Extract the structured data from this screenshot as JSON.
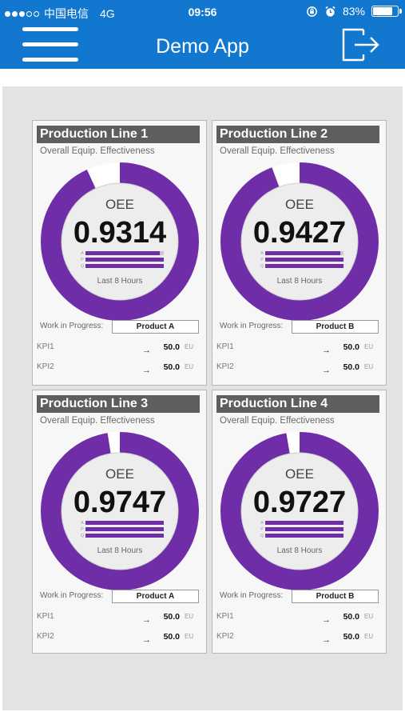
{
  "status_bar": {
    "carrier": "中国电信",
    "network": "4G",
    "time": "09:56",
    "battery_percent": "83%",
    "battery_level": 0.83,
    "signal_bars_filled": 3,
    "signal_bars_total": 5
  },
  "header": {
    "title": "Demo App",
    "menu_icon": "hamburger-menu-icon",
    "exit_icon": "logout-icon"
  },
  "colors": {
    "header_bg": "#1278cf",
    "gauge_purple": "#6f2da8",
    "card_title_bg": "#5e5e5e",
    "panel_bg": "#e3e3e3"
  },
  "cards": [
    {
      "title": "Production Line 1",
      "subtitle": "Overall Equip. Effectiveness",
      "metric_label": "OEE",
      "value": "0.9314",
      "oee": 0.9314,
      "bar_letters": [
        "A",
        "P",
        "Q"
      ],
      "bars": [
        0.95,
        1.0,
        1.0
      ],
      "period": "Last 8 Hours",
      "wip_label": "Work in Progress:",
      "wip_value": "Product A",
      "kpis": [
        {
          "label": "KPI1",
          "value": "50.0",
          "unit": "EU"
        },
        {
          "label": "KPI2",
          "value": "50.0",
          "unit": "EU"
        }
      ]
    },
    {
      "title": "Production Line 2",
      "subtitle": "Overall Equip. Effectiveness",
      "metric_label": "OEE",
      "value": "0.9427",
      "oee": 0.9427,
      "bar_letters": [
        "A",
        "P",
        "Q"
      ],
      "bars": [
        0.96,
        1.0,
        1.0
      ],
      "period": "Last 8 Hours",
      "wip_label": "Work in Progress:",
      "wip_value": "Product B",
      "kpis": [
        {
          "label": "KPI1",
          "value": "50.0",
          "unit": "EU"
        },
        {
          "label": "KPI2",
          "value": "50.0",
          "unit": "EU"
        }
      ]
    },
    {
      "title": "Production Line 3",
      "subtitle": "Overall Equip. Effectiveness",
      "metric_label": "OEE",
      "value": "0.9747",
      "oee": 0.9747,
      "bar_letters": [
        "A",
        "P",
        "Q"
      ],
      "bars": [
        1.0,
        1.0,
        1.0
      ],
      "period": "Last 8 Hours",
      "wip_label": "Work in Progress:",
      "wip_value": "Product A",
      "kpis": [
        {
          "label": "KPI1",
          "value": "50.0",
          "unit": "EU"
        },
        {
          "label": "KPI2",
          "value": "50.0",
          "unit": "EU"
        }
      ]
    },
    {
      "title": "Production Line 4",
      "subtitle": "Overall Equip. Effectiveness",
      "metric_label": "OEE",
      "value": "0.9727",
      "oee": 0.9727,
      "bar_letters": [
        "A",
        "P",
        "Q"
      ],
      "bars": [
        1.0,
        1.0,
        1.0
      ],
      "period": "Last 8 Hours",
      "wip_label": "Work in Progress:",
      "wip_value": "Product B",
      "kpis": [
        {
          "label": "KPI1",
          "value": "50.0",
          "unit": "EU"
        },
        {
          "label": "KPI2",
          "value": "50.0",
          "unit": "EU"
        }
      ]
    }
  ]
}
